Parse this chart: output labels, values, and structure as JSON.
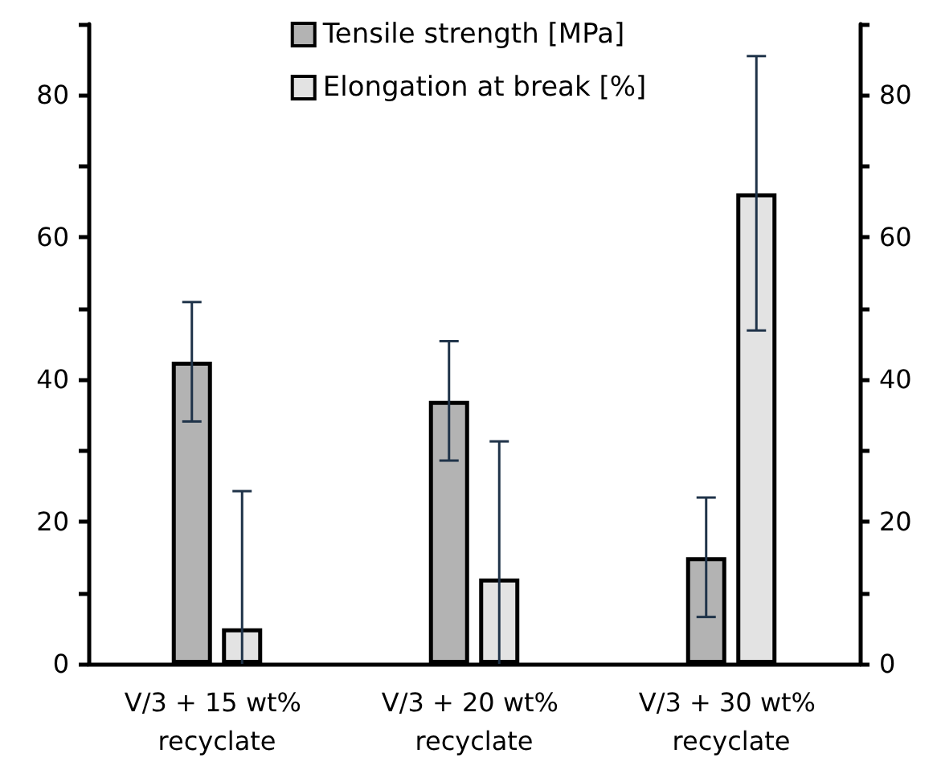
{
  "chart_data": {
    "type": "bar",
    "categories": [
      "V/3 + 15 wt% recyclate",
      "V/3 + 20 wt% recyclate",
      "V/3 + 30 wt% recyclate"
    ],
    "series": [
      {
        "name": "Tensile strength [MPa]",
        "color": "#b3b3b3",
        "values": [
          42.5,
          37.0,
          15.0
        ],
        "errors": [
          8.4,
          8.4,
          8.4
        ]
      },
      {
        "name": "Elongation at break [%]",
        "color": "#e3e3e3",
        "values": [
          5.0,
          12.0,
          66.2
        ],
        "errors": [
          [
            0,
            24.3
          ],
          [
            0,
            31.3
          ],
          19.3
        ]
      }
    ],
    "ylim": [
      0,
      90
    ],
    "yticks": [
      0,
      {
        "value": 10,
        "label": null
      },
      20,
      {
        "value": 30,
        "label": null
      },
      40,
      {
        "value": 50,
        "label": null
      },
      60,
      {
        "value": 70,
        "label": null
      },
      80,
      {
        "value": 90,
        "label": null
      }
    ],
    "y2lim": [
      0,
      90
    ],
    "y2ticks": [
      0,
      {
        "value": 10,
        "label": null
      },
      20,
      {
        "value": 30,
        "label": null
      },
      40,
      {
        "value": 50,
        "label": null
      },
      60,
      {
        "value": 70,
        "label": null
      },
      80,
      {
        "value": 90,
        "label": null
      }
    ],
    "grid": false,
    "legend": "top"
  }
}
